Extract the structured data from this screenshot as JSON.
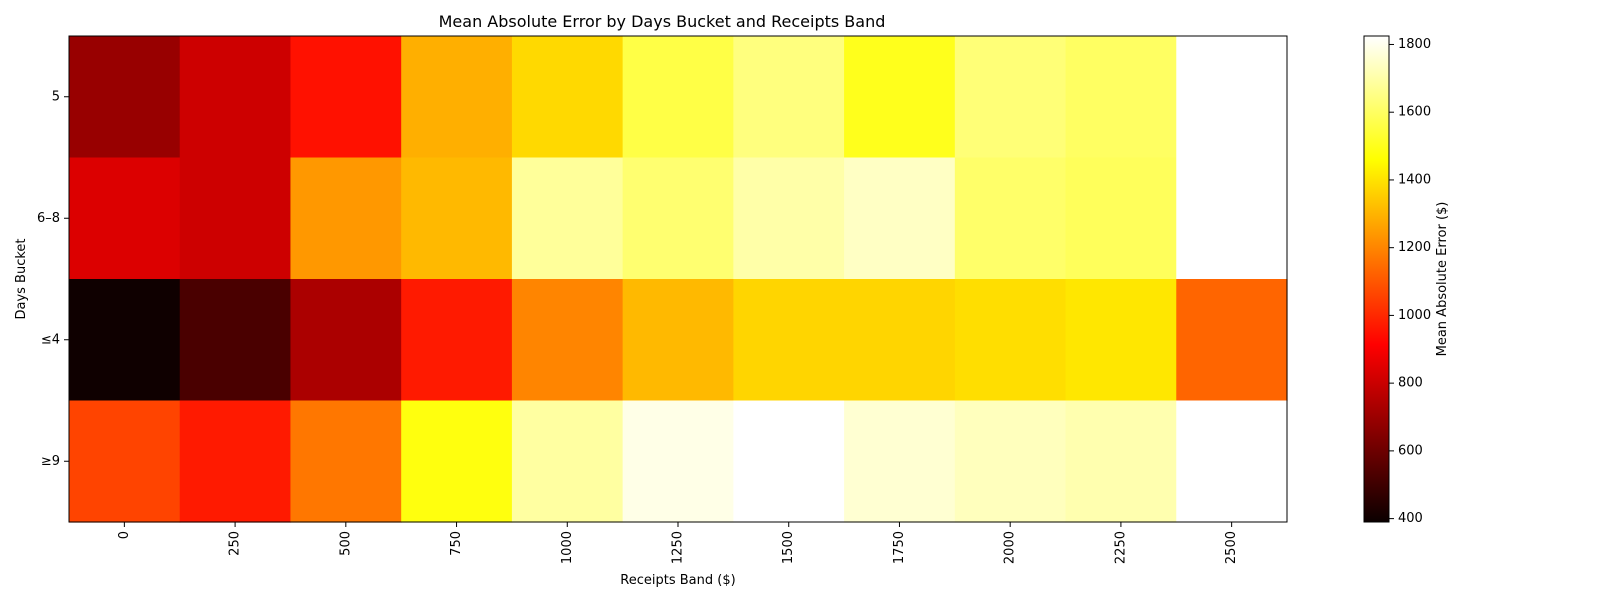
{
  "chart_data": {
    "type": "heatmap",
    "title": "Mean Absolute Error by Days Bucket and Receipts Band",
    "xlabel": "Receipts Band ($)",
    "ylabel": "Days Bucket",
    "x_categories": [
      "0",
      "250",
      "500",
      "750",
      "1000",
      "1250",
      "1500",
      "1750",
      "2000",
      "2250",
      "2500"
    ],
    "y_categories": [
      "5",
      "6–8",
      "≤4",
      "≥9"
    ],
    "values": [
      [
        680,
        790,
        950,
        1290,
        1380,
        1560,
        1640,
        1500,
        1630,
        1600,
        null
      ],
      [
        820,
        790,
        1240,
        1310,
        1680,
        1620,
        1700,
        1740,
        1610,
        1590,
        null
      ],
      [
        400,
        520,
        720,
        970,
        1200,
        1310,
        1370,
        1370,
        1390,
        1410,
        1130
      ],
      [
        1060,
        970,
        1170,
        1480,
        1690,
        1790,
        null,
        1760,
        1730,
        1710,
        null
      ]
    ],
    "colorbar": {
      "label": "Mean Absolute Error ($)",
      "colormap": "hot",
      "min": 390,
      "max": 1825,
      "ticks": [
        400,
        600,
        800,
        1000,
        1200,
        1400,
        1600,
        1800
      ]
    },
    "missing_color": "#ffffff",
    "grid": false
  }
}
